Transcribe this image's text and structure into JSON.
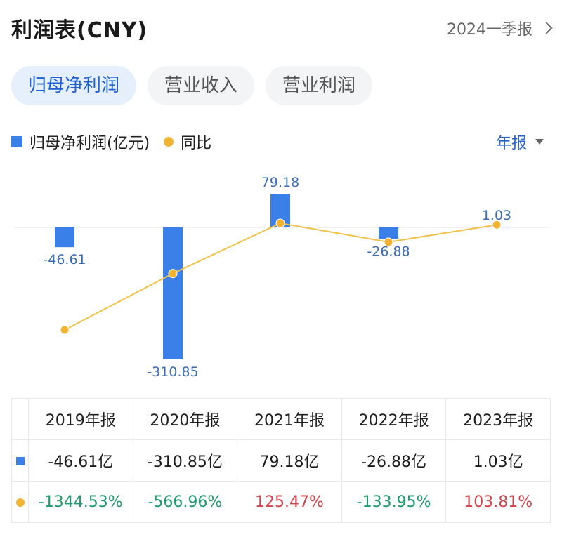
{
  "header": {
    "title": "利润表(CNY)",
    "period_link": "2024一季报"
  },
  "tabs": [
    {
      "label": "归母净利润",
      "active": true
    },
    {
      "label": "营业收入",
      "active": false
    },
    {
      "label": "营业利润",
      "active": false
    }
  ],
  "legend": {
    "bar_label": "归母净利润(亿元)",
    "line_label": "同比"
  },
  "period_select": "年报",
  "colors": {
    "bar": "#3b7fe8",
    "line": "#f0b432",
    "negative": "#1f9a6a",
    "positive": "#d2434a",
    "accent": "#1f62d8"
  },
  "chart_data": {
    "type": "bar",
    "categories": [
      "2019年报",
      "2020年报",
      "2021年报",
      "2022年报",
      "2023年报"
    ],
    "series": [
      {
        "name": "归母净利润(亿元)",
        "type": "bar",
        "values": [
          -46.61,
          -310.85,
          79.18,
          -26.88,
          1.03
        ],
        "data_labels": [
          "-46.61",
          "-310.85",
          "79.18",
          "-26.88",
          "1.03"
        ]
      },
      {
        "name": "同比",
        "type": "line",
        "values": [
          -1344.53,
          -566.96,
          125.47,
          -133.95,
          103.81
        ]
      }
    ]
  },
  "table": {
    "headers": [
      "2019年报",
      "2020年报",
      "2021年报",
      "2022年报",
      "2023年报"
    ],
    "profit_row": [
      "-46.61亿",
      "-310.85亿",
      "79.18亿",
      "-26.88亿",
      "1.03亿"
    ],
    "yoy_row": [
      {
        "text": "-1344.53%",
        "sign": "neg"
      },
      {
        "text": "-566.96%",
        "sign": "neg"
      },
      {
        "text": "125.47%",
        "sign": "pos"
      },
      {
        "text": "-133.95%",
        "sign": "neg"
      },
      {
        "text": "103.81%",
        "sign": "pos"
      }
    ]
  }
}
